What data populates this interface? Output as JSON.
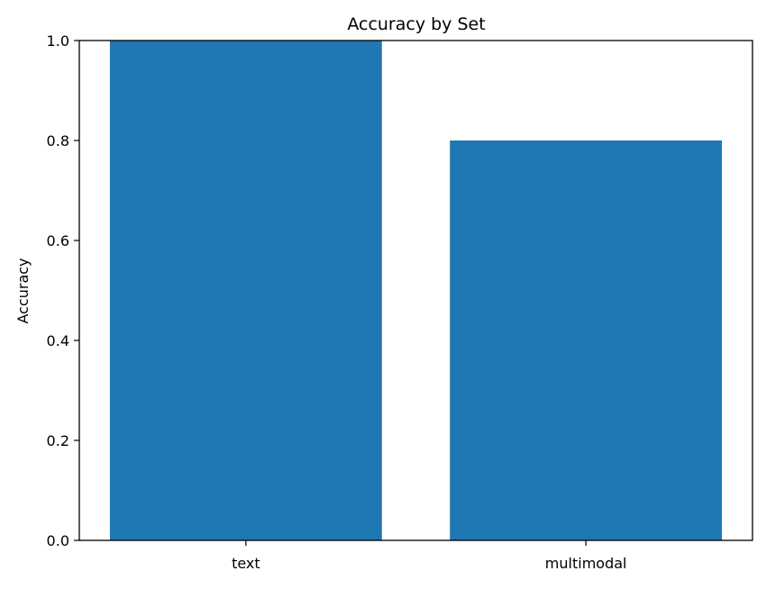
{
  "chart_data": {
    "type": "bar",
    "title": "Accuracy by Set",
    "xlabel": "",
    "ylabel": "Accuracy",
    "categories": [
      "text",
      "multimodal"
    ],
    "values": [
      1.0,
      0.8
    ],
    "ylim": [
      0,
      1.0
    ],
    "yticks": [
      "0.0",
      "0.2",
      "0.4",
      "0.6",
      "0.8",
      "1.0"
    ],
    "grid": false,
    "bar_color": "#1f77b4"
  }
}
